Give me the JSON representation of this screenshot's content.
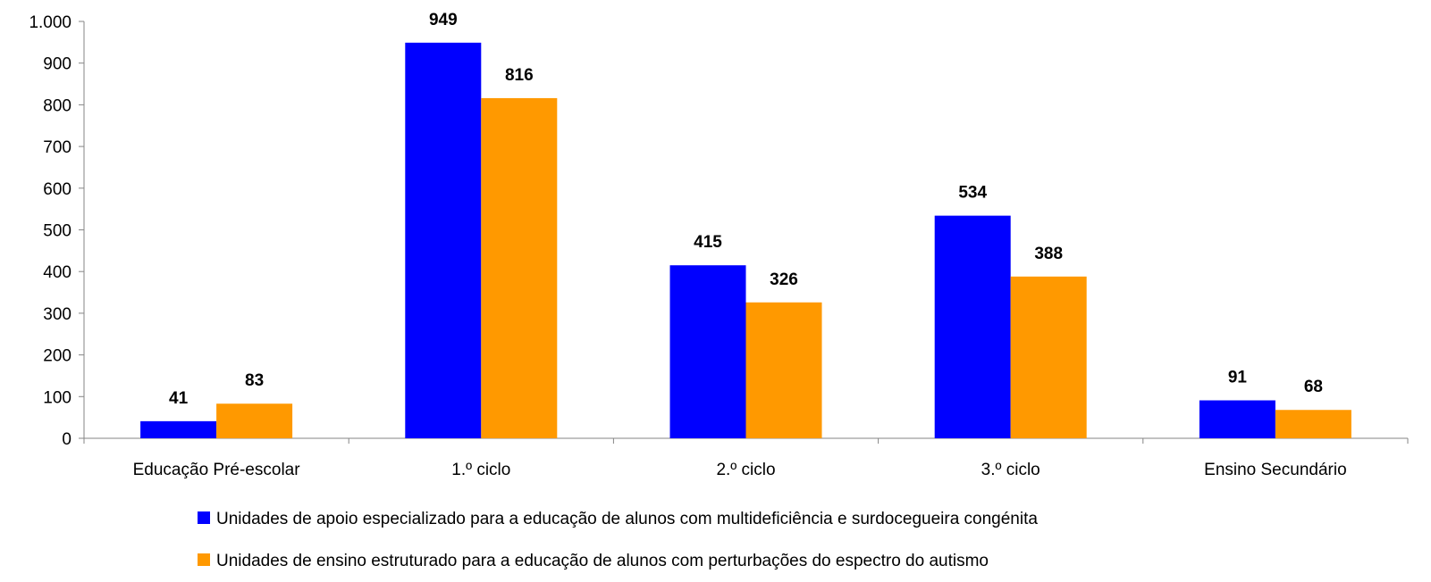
{
  "chart_data": {
    "type": "bar",
    "categories": [
      "Educação Pré-escolar",
      "1.º ciclo",
      "2.º ciclo",
      "3.º ciclo",
      "Ensino Secundário"
    ],
    "series": [
      {
        "name": "Unidades de apoio especializado para a educação de alunos com multideficiência e surdocegueira congénita",
        "color": "#0000FF",
        "values": [
          41,
          949,
          415,
          534,
          91
        ]
      },
      {
        "name": "Unidades de ensino estruturado para a educação de alunos com perturbações do espectro do autismo",
        "color": "#FF9900",
        "values": [
          83,
          816,
          326,
          388,
          68
        ]
      }
    ],
    "ylim": [
      0,
      1000
    ],
    "yticks": [
      0,
      100,
      200,
      300,
      400,
      500,
      600,
      700,
      800,
      900,
      1000
    ],
    "ytick_labels": [
      "0",
      "100",
      "200",
      "300",
      "400",
      "500",
      "600",
      "700",
      "800",
      "900",
      "1.000"
    ],
    "grid": false,
    "legend_position": "bottom"
  }
}
